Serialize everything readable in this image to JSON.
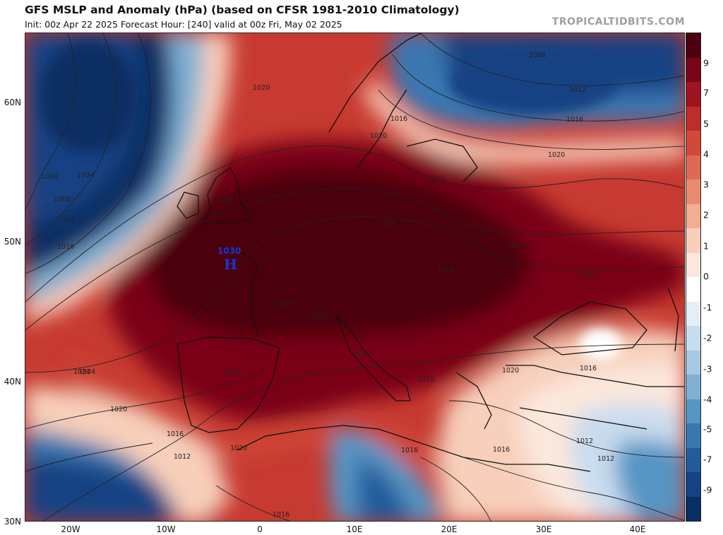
{
  "header": {
    "title": "GFS MSLP and Anomaly (hPa) (based on CFSR 1981-2010 Climatology)",
    "subtitle": "Init: 00z Apr 22 2025   Forecast Hour: [240]   valid at 00z Fri, May 02 2025",
    "brand": "TROPICALTIDBITS.COM"
  },
  "axes": {
    "lat_labels": [
      "60N",
      "50N",
      "40N",
      "30N"
    ],
    "lon_labels": [
      "20W",
      "10W",
      "0",
      "10E",
      "20E",
      "30E",
      "40E"
    ]
  },
  "colorbar": {
    "labels": [
      "9",
      "7",
      "5",
      "4",
      "3",
      "2",
      "1",
      "0",
      "-1",
      "-2",
      "-3",
      "-4",
      "-5",
      "-7",
      "-9"
    ],
    "colors": [
      "#4c0010",
      "#7a0519",
      "#9e1420",
      "#bd2d2a",
      "#d04a37",
      "#dd6b52",
      "#e88c6f",
      "#f1ae93",
      "#f7cfba",
      "#fbe7dc",
      "#ffffff",
      "#e4eef7",
      "#c9dcee",
      "#a6c8e2",
      "#7fb0d4",
      "#5795c4",
      "#3a77b1",
      "#235c9c",
      "#134383",
      "#0a2e63"
    ]
  },
  "map": {
    "high_center": {
      "label": "H",
      "value": "1030"
    },
    "isobar_labels": [
      "1020",
      "1024",
      "1028",
      "1028",
      "1028",
      "1024",
      "1024",
      "1024",
      "1020",
      "1020",
      "1016",
      "1016",
      "1016",
      "1012",
      "1008",
      "1008",
      "1004",
      "1000",
      "1012",
      "1016",
      "1020",
      "1024",
      "1020",
      "1016",
      "1012",
      "1020",
      "1016",
      "1012",
      "1012",
      "1016",
      "1020",
      "1020",
      "1016",
      "1024",
      "1024",
      "1024"
    ],
    "colors": {
      "land_border": "#111111",
      "isobar": "#222222",
      "high_marker": "#1a33d6"
    }
  }
}
